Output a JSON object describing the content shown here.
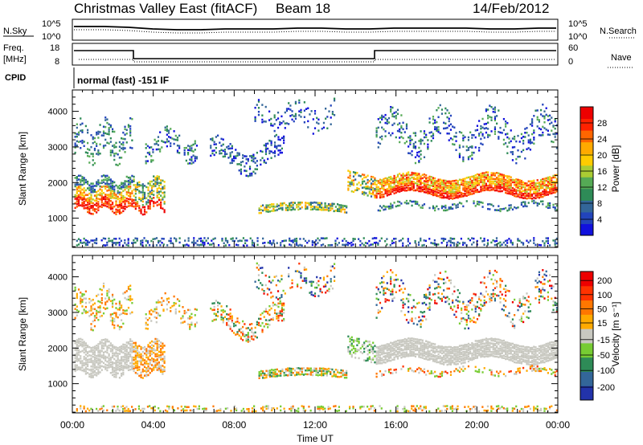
{
  "header": {
    "station": "Christmas Valley East (fitACF)",
    "beam": "Beam 18",
    "date": "14/Feb/2012"
  },
  "panels": {
    "nsky_label": "N.Sky",
    "nsky_ticks": [
      "10^5",
      "10^0"
    ],
    "nsearch_label": "N.Search",
    "nsearch_ticks": [
      "10^5",
      "10^0"
    ],
    "freq_label_1": "Freq.",
    "freq_label_2": "[MHz]",
    "freq_ticks": [
      "18",
      "8"
    ],
    "nave_label": "Nave",
    "nave_ticks": [
      "60",
      "0"
    ],
    "cpid_label": "CPID",
    "cpid_text": "normal (fast) -151 IF"
  },
  "chart_data": [
    {
      "type": "heatmap",
      "title": "Power",
      "ylabel": "Slant Range [km]",
      "xlabel": "Time UT",
      "x_ticks": [
        "00:00",
        "04:00",
        "08:00",
        "12:00",
        "16:00",
        "20:00",
        "00:00"
      ],
      "x_range_hours": [
        0,
        24
      ],
      "y_ticks": [
        1000,
        2000,
        3000,
        4000
      ],
      "ylim": [
        180,
        4600
      ],
      "colorbar": {
        "label": "Power [dB]",
        "ticks": [
          "28",
          "24",
          "20",
          "16",
          "12",
          "8",
          "4"
        ],
        "range": [
          0,
          32
        ],
        "colors": [
          "#1111dd",
          "#2244bb",
          "#336699",
          "#2e8b57",
          "#55aa55",
          "#aacc33",
          "#ffcc00",
          "#ffaa00",
          "#ff6600",
          "#ff2200",
          "#ee0000"
        ]
      }
    },
    {
      "type": "heatmap",
      "title": "Velocity",
      "ylabel": "Slant Range [km]",
      "xlabel": "Time UT",
      "x_ticks": [
        "00:00",
        "04:00",
        "08:00",
        "12:00",
        "16:00",
        "20:00",
        "00:00"
      ],
      "x_range_hours": [
        0,
        24
      ],
      "y_ticks": [
        1000,
        2000,
        3000,
        4000
      ],
      "ylim": [
        180,
        4600
      ],
      "colorbar": {
        "label": "Velocity [m s⁻¹]",
        "ticks": [
          "200",
          "100",
          "50",
          "15",
          "-15",
          "-50",
          "-100",
          "-200"
        ],
        "colors": [
          "#2233aa",
          "#336699",
          "#2e8b57",
          "#77cc33",
          "#c8c8c0",
          "#ffaa00",
          "#ff7700",
          "#ff3300",
          "#ee0000"
        ]
      }
    }
  ],
  "x_axis": {
    "label": "Time UT",
    "ticks": [
      "00:00",
      "04:00",
      "08:00",
      "12:00",
      "16:00",
      "20:00",
      "00:00"
    ]
  }
}
